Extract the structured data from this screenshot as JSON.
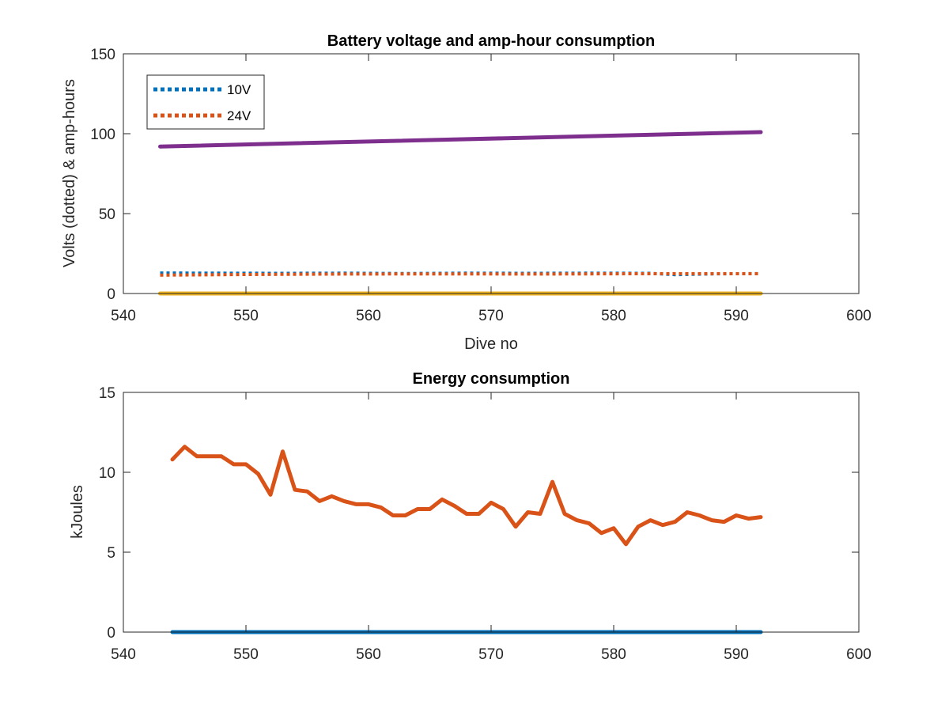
{
  "chart_data": [
    {
      "type": "line",
      "title": "Battery voltage and amp-hour consumption",
      "xlabel": "Dive no",
      "ylabel": "Volts (dotted) & amp-hours",
      "xlim": [
        540,
        600
      ],
      "ylim": [
        0,
        150
      ],
      "xticks": [
        540,
        550,
        560,
        570,
        580,
        590,
        600
      ],
      "yticks": [
        0,
        50,
        100,
        150
      ],
      "grid": false,
      "legend_position": "top-left",
      "series": [
        {
          "name": "10V",
          "style": "dotted",
          "color": "#0072BD",
          "x": [
            543,
            548,
            553,
            558,
            563,
            568,
            573,
            578,
            583,
            585,
            588,
            592
          ],
          "y": [
            12.8,
            12.7,
            12.6,
            12.7,
            12.5,
            12.7,
            12.6,
            12.7,
            12.6,
            11.8,
            12.3,
            12.5
          ]
        },
        {
          "name": "24V",
          "style": "dotted",
          "color": "#D95319",
          "x": [
            543,
            550,
            558,
            566,
            574,
            582,
            592
          ],
          "y": [
            11.5,
            11.9,
            12.2,
            12.3,
            12.2,
            12.4,
            12.4
          ]
        },
        {
          "style": "solid",
          "color": "#7E2F8E",
          "x": [
            543,
            592
          ],
          "y": [
            92,
            101
          ]
        },
        {
          "style": "solid",
          "color": "#EDB120",
          "x": [
            543,
            592
          ],
          "y": [
            0,
            0
          ]
        }
      ]
    },
    {
      "type": "line",
      "title": "Energy consumption",
      "xlabel": "",
      "ylabel": "kJoules",
      "xlim": [
        540,
        600
      ],
      "ylim": [
        0,
        15
      ],
      "xticks": [
        540,
        550,
        560,
        570,
        580,
        590,
        600
      ],
      "yticks": [
        0,
        5,
        10,
        15
      ],
      "grid": false,
      "series": [
        {
          "style": "solid",
          "color": "#D95319",
          "x": [
            544,
            545,
            546,
            547,
            548,
            549,
            550,
            551,
            552,
            553,
            554,
            555,
            556,
            557,
            558,
            559,
            560,
            561,
            562,
            563,
            564,
            565,
            566,
            567,
            568,
            569,
            570,
            571,
            572,
            573,
            574,
            575,
            576,
            577,
            578,
            579,
            580,
            581,
            582,
            583,
            584,
            585,
            586,
            587,
            588,
            589,
            590,
            591,
            592
          ],
          "y": [
            10.8,
            11.6,
            11.0,
            11.0,
            11.0,
            10.5,
            10.5,
            9.9,
            8.6,
            11.3,
            8.9,
            8.8,
            8.2,
            8.5,
            8.2,
            8.0,
            8.0,
            7.8,
            7.3,
            7.3,
            7.7,
            7.7,
            8.3,
            7.9,
            7.4,
            7.4,
            8.1,
            7.7,
            6.6,
            7.5,
            7.4,
            9.4,
            7.4,
            7.0,
            6.8,
            6.2,
            6.5,
            5.5,
            6.6,
            7.0,
            6.7,
            6.9,
            7.5,
            7.3,
            7.0,
            6.9,
            7.3,
            7.1,
            7.2
          ]
        },
        {
          "style": "solid",
          "color": "#0072BD",
          "x": [
            544,
            592
          ],
          "y": [
            0,
            0
          ]
        }
      ]
    }
  ]
}
